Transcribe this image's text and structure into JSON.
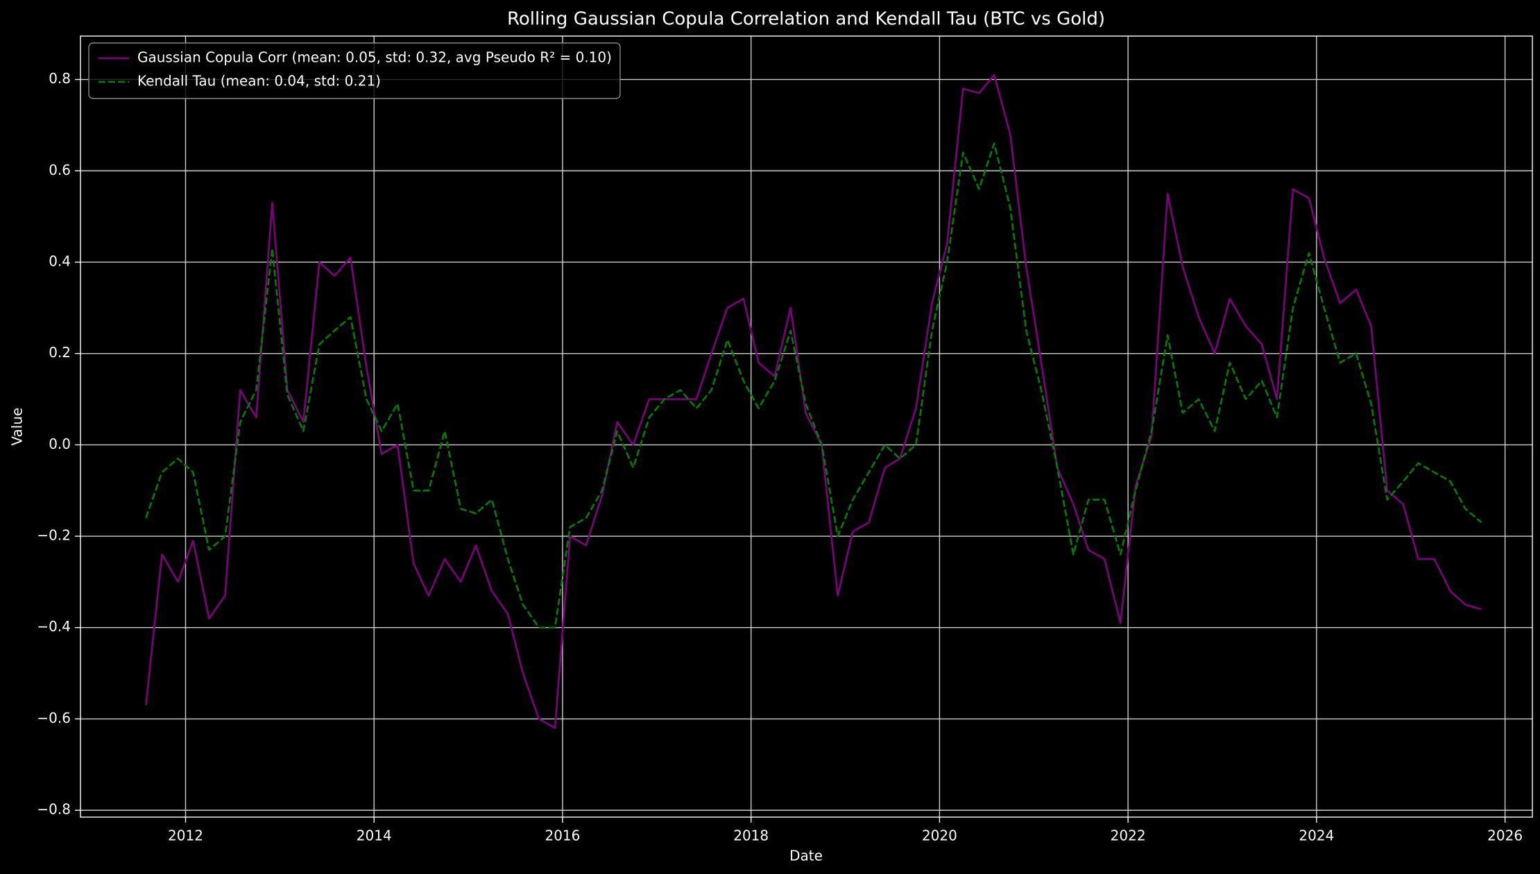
{
  "chart_data": {
    "type": "line",
    "title": "Rolling Gaussian Copula Correlation and Kendall Tau (BTC vs Gold)",
    "xlabel": "Date",
    "ylabel": "Value",
    "x": [
      2011.58,
      2011.75,
      2011.92,
      2012.08,
      2012.25,
      2012.42,
      2012.58,
      2012.75,
      2012.92,
      2013.08,
      2013.25,
      2013.42,
      2013.58,
      2013.75,
      2013.92,
      2014.08,
      2014.25,
      2014.42,
      2014.58,
      2014.75,
      2014.92,
      2015.08,
      2015.25,
      2015.42,
      2015.58,
      2015.75,
      2015.92,
      2016.08,
      2016.25,
      2016.42,
      2016.58,
      2016.75,
      2016.92,
      2017.08,
      2017.25,
      2017.42,
      2017.58,
      2017.75,
      2017.92,
      2018.08,
      2018.25,
      2018.42,
      2018.58,
      2018.75,
      2018.92,
      2019.08,
      2019.25,
      2019.42,
      2019.58,
      2019.75,
      2019.92,
      2020.08,
      2020.25,
      2020.42,
      2020.58,
      2020.75,
      2020.92,
      2021.08,
      2021.25,
      2021.42,
      2021.58,
      2021.75,
      2021.92,
      2022.08,
      2022.25,
      2022.42,
      2022.58,
      2022.75,
      2022.92,
      2023.08,
      2023.25,
      2023.42,
      2023.58,
      2023.75,
      2023.92,
      2024.08,
      2024.25,
      2024.42,
      2024.58,
      2024.75,
      2024.92,
      2025.08,
      2025.25,
      2025.42,
      2025.58,
      2025.75
    ],
    "series": [
      {
        "name": "Gaussian Copula Corr (mean: 0.05, std: 0.32, avg Pseudo R² = 0.10)",
        "color": "#800080",
        "dash": "solid",
        "values": [
          -0.57,
          -0.24,
          -0.3,
          -0.21,
          -0.38,
          -0.33,
          0.12,
          0.06,
          0.53,
          0.12,
          0.05,
          0.4,
          0.37,
          0.41,
          0.17,
          -0.02,
          0.0,
          -0.26,
          -0.33,
          -0.25,
          -0.3,
          -0.22,
          -0.32,
          -0.37,
          -0.5,
          -0.6,
          -0.62,
          -0.2,
          -0.22,
          -0.11,
          0.05,
          0.0,
          0.1,
          0.1,
          0.1,
          0.1,
          0.2,
          0.3,
          0.32,
          0.18,
          0.15,
          0.3,
          0.07,
          0.0,
          -0.33,
          -0.19,
          -0.17,
          -0.05,
          -0.03,
          0.08,
          0.31,
          0.44,
          0.78,
          0.77,
          0.81,
          0.68,
          0.39,
          0.18,
          -0.05,
          -0.13,
          -0.23,
          -0.25,
          -0.39,
          -0.09,
          0.02,
          0.55,
          0.39,
          0.28,
          0.2,
          0.32,
          0.26,
          0.22,
          0.1,
          0.56,
          0.54,
          0.41,
          0.31,
          0.34,
          0.26,
          -0.1,
          -0.13,
          -0.25,
          -0.25,
          -0.32,
          -0.35,
          -0.36
        ]
      },
      {
        "name": "Kendall Tau (mean: 0.04, std: 0.21)",
        "color": "#008000",
        "dash": "dashed",
        "values": [
          -0.16,
          -0.06,
          -0.03,
          -0.06,
          -0.23,
          -0.2,
          0.05,
          0.12,
          0.43,
          0.11,
          0.03,
          0.22,
          0.25,
          0.28,
          0.1,
          0.03,
          0.09,
          -0.1,
          -0.1,
          0.03,
          -0.14,
          -0.15,
          -0.12,
          -0.25,
          -0.35,
          -0.4,
          -0.4,
          -0.18,
          -0.16,
          -0.1,
          0.03,
          -0.05,
          0.06,
          0.1,
          0.12,
          0.08,
          0.12,
          0.23,
          0.14,
          0.08,
          0.14,
          0.25,
          0.09,
          0.0,
          -0.2,
          -0.12,
          -0.06,
          0.0,
          -0.03,
          0.0,
          0.25,
          0.4,
          0.64,
          0.56,
          0.66,
          0.52,
          0.25,
          0.12,
          -0.05,
          -0.24,
          -0.12,
          -0.12,
          -0.24,
          -0.1,
          0.03,
          0.24,
          0.07,
          0.1,
          0.03,
          0.18,
          0.1,
          0.14,
          0.06,
          0.3,
          0.42,
          0.3,
          0.18,
          0.2,
          0.09,
          -0.12,
          -0.08,
          -0.04,
          -0.06,
          -0.08,
          -0.14,
          -0.17
        ]
      }
    ],
    "xlim": [
      2010.885,
      2026.29
    ],
    "xticks": [
      2012,
      2014,
      2016,
      2018,
      2020,
      2022,
      2024,
      2026
    ],
    "ylim": [
      -0.815,
      0.895
    ],
    "yticks": [
      {
        "value": -0.8,
        "label": "−0.8"
      },
      {
        "value": -0.6,
        "label": "−0.6"
      },
      {
        "value": -0.4,
        "label": "−0.4"
      },
      {
        "value": -0.2,
        "label": "−0.2"
      },
      {
        "value": 0,
        "label": "0.0"
      },
      {
        "value": 0.2,
        "label": "0.2"
      },
      {
        "value": 0.4,
        "label": "0.4"
      },
      {
        "value": 0.6,
        "label": "0.6"
      },
      {
        "value": 0.8,
        "label": "0.8"
      }
    ],
    "grid": true,
    "legend": "upper-left"
  }
}
